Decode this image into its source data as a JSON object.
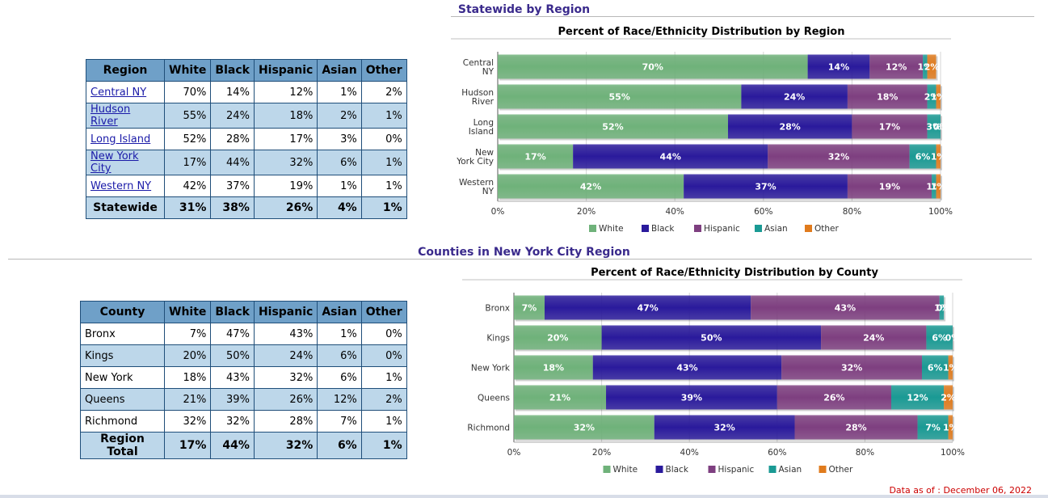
{
  "section1": {
    "title": "Statewide by Region",
    "table": {
      "headers": [
        "Region",
        "White",
        "Black",
        "Hispanic",
        "Asian",
        "Other"
      ],
      "rows": [
        [
          "Central NY",
          "70%",
          "14%",
          "12%",
          "1%",
          "2%"
        ],
        [
          "Hudson River",
          "55%",
          "24%",
          "18%",
          "2%",
          "1%"
        ],
        [
          "Long Island",
          "52%",
          "28%",
          "17%",
          "3%",
          "0%"
        ],
        [
          "New York City",
          "17%",
          "44%",
          "32%",
          "6%",
          "1%"
        ],
        [
          "Western NY",
          "42%",
          "37%",
          "19%",
          "1%",
          "1%"
        ]
      ],
      "total": [
        "Statewide",
        "31%",
        "38%",
        "26%",
        "4%",
        "1%"
      ]
    }
  },
  "section2": {
    "title": "Counties in New York City Region",
    "table": {
      "headers": [
        "County",
        "White",
        "Black",
        "Hispanic",
        "Asian",
        "Other"
      ],
      "rows": [
        [
          "Bronx",
          "7%",
          "47%",
          "43%",
          "1%",
          "0%"
        ],
        [
          "Kings",
          "20%",
          "50%",
          "24%",
          "6%",
          "0%"
        ],
        [
          "New York",
          "18%",
          "43%",
          "32%",
          "6%",
          "1%"
        ],
        [
          "Queens",
          "21%",
          "39%",
          "26%",
          "12%",
          "2%"
        ],
        [
          "Richmond",
          "32%",
          "32%",
          "28%",
          "7%",
          "1%"
        ]
      ],
      "total": [
        "Region Total",
        "17%",
        "44%",
        "32%",
        "6%",
        "1%"
      ]
    }
  },
  "colors": {
    "White": "#6fb27a",
    "Black": "#2a1a9c",
    "Hispanic": "#7e3f80",
    "Asian": "#1a9a94",
    "Other": "#e07b1d"
  },
  "chart_data": [
    {
      "type": "bar",
      "orientation": "horizontal-stacked",
      "title": "Percent of Race/Ethnicity Distribution by Region",
      "categories": [
        [
          "Central",
          "NY"
        ],
        [
          "Hudson",
          "River"
        ],
        [
          "Long",
          "Island"
        ],
        [
          "New",
          "York City"
        ],
        [
          "Western",
          "NY"
        ]
      ],
      "series": [
        {
          "name": "White",
          "values": [
            70,
            55,
            52,
            17,
            42
          ]
        },
        {
          "name": "Black",
          "values": [
            14,
            24,
            28,
            44,
            37
          ]
        },
        {
          "name": "Hispanic",
          "values": [
            12,
            18,
            17,
            32,
            19
          ]
        },
        {
          "name": "Asian",
          "values": [
            1,
            2,
            3,
            6,
            1
          ]
        },
        {
          "name": "Other",
          "values": [
            2,
            1,
            0,
            1,
            1
          ]
        }
      ],
      "xticks": [
        "0%",
        "20%",
        "40%",
        "60%",
        "80%",
        "100%"
      ],
      "xlim": [
        0,
        100
      ],
      "legend": "bottom"
    },
    {
      "type": "bar",
      "orientation": "horizontal-stacked",
      "title": "Percent of Race/Ethnicity Distribution by County",
      "categories": [
        [
          "Bronx"
        ],
        [
          "Kings"
        ],
        [
          "New York"
        ],
        [
          "Queens"
        ],
        [
          "Richmond"
        ]
      ],
      "series": [
        {
          "name": "White",
          "values": [
            7,
            20,
            18,
            21,
            32
          ]
        },
        {
          "name": "Black",
          "values": [
            47,
            50,
            43,
            39,
            32
          ]
        },
        {
          "name": "Hispanic",
          "values": [
            43,
            24,
            32,
            26,
            28
          ]
        },
        {
          "name": "Asian",
          "values": [
            1,
            6,
            6,
            12,
            7
          ]
        },
        {
          "name": "Other",
          "values": [
            0,
            0,
            1,
            2,
            1
          ]
        }
      ],
      "xticks": [
        "0%",
        "20%",
        "40%",
        "60%",
        "80%",
        "100%"
      ],
      "xlim": [
        0,
        100
      ],
      "legend": "bottom"
    }
  ],
  "footer": {
    "note": "Data as of : December 06, 2022"
  }
}
